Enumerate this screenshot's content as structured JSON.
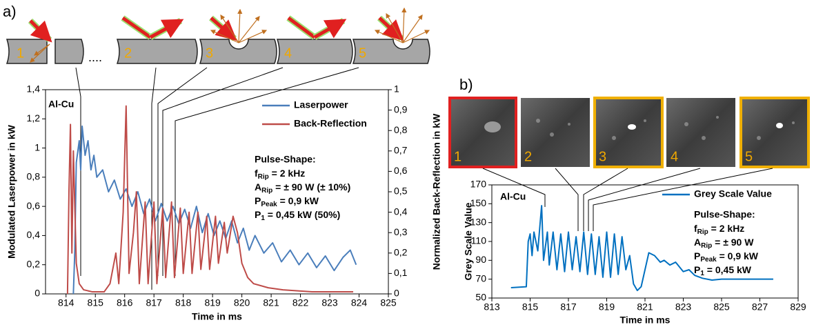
{
  "figure": {
    "panel_labels": [
      "a)",
      "b)"
    ],
    "schematic_labels": [
      "1",
      "2",
      "3",
      "4",
      "5"
    ],
    "ellipsis": "....",
    "image_labels": [
      "1",
      "2",
      "3",
      "4",
      "5"
    ]
  },
  "chart_data": [
    {
      "type": "line",
      "label": "Al-Cu",
      "xlabel": "Time in ms",
      "ylabel": "Modulated Laserpower in kW",
      "y2label": "Normalized Back-Reflection in kW",
      "xlim": [
        813.3,
        825
      ],
      "xticks": [
        814,
        815,
        816,
        817,
        818,
        819,
        820,
        821,
        822,
        823,
        824,
        825
      ],
      "ylim": [
        0,
        1.4
      ],
      "yticks": [
        0,
        {
          "value": 0.2,
          "label": "0,2"
        },
        {
          "value": 0.4,
          "label": "0,4"
        },
        {
          "value": 0.6,
          "label": "0,6"
        },
        {
          "value": 0.8,
          "label": "0,8"
        },
        1,
        {
          "value": 1.2,
          "label": "1,2"
        },
        {
          "value": 1.4,
          "label": "1,4"
        }
      ],
      "y2lim": [
        0,
        1
      ],
      "y2ticks": [
        0,
        {
          "value": 0.1,
          "label": "0,1"
        },
        {
          "value": 0.2,
          "label": "0,2"
        },
        {
          "value": 0.3,
          "label": "0,3"
        },
        {
          "value": 0.4,
          "label": "0,4"
        },
        {
          "value": 0.5,
          "label": "0,5"
        },
        {
          "value": 0.6,
          "label": "0,6"
        },
        {
          "value": 0.7,
          "label": "0,7"
        },
        {
          "value": 0.8,
          "label": "0,8"
        },
        {
          "value": 0.9,
          "label": "0,9"
        },
        1
      ],
      "pulse_shape": {
        "title": "Pulse-Shape:",
        "lines": [
          {
            "symbol": "f",
            "sub": "Rip",
            "text": " = 2 kHz"
          },
          {
            "symbol": "A",
            "sub": "Rip",
            "text": " = ± 90 W (± 10%)"
          },
          {
            "symbol": "P",
            "sub": "Peak",
            "text": " = 0,9 kW"
          },
          {
            "symbol": "P",
            "sub": "1",
            "text": " = 0,45 kW (50%)"
          }
        ]
      },
      "series": [
        {
          "name": "Laserpower",
          "color": "#4a7ebb",
          "x": [
            814.25,
            814.3,
            814.35,
            814.45,
            814.5,
            814.55,
            814.65,
            814.75,
            814.85,
            814.95,
            815.05,
            815.25,
            815.45,
            815.65,
            815.85,
            816.05,
            816.25,
            816.45,
            816.65,
            816.85,
            817.05,
            817.25,
            817.45,
            817.65,
            817.85,
            818.05,
            818.25,
            818.45,
            818.65,
            818.85,
            819.05,
            819.25,
            819.45,
            819.65,
            819.85,
            820.05,
            820.25,
            820.45,
            820.75,
            821.05,
            821.35,
            821.65,
            821.95,
            822.25,
            822.55,
            822.85,
            823.15,
            823.45,
            823.7,
            823.9
          ],
          "values": [
            0,
            0.3,
            0.9,
            1.05,
            0.85,
            1.15,
            0.95,
            1.05,
            0.85,
            0.95,
            0.8,
            0.85,
            0.7,
            0.78,
            0.65,
            0.72,
            0.6,
            0.7,
            0.55,
            0.65,
            0.5,
            0.62,
            0.5,
            0.6,
            0.48,
            0.58,
            0.45,
            0.6,
            0.42,
            0.55,
            0.4,
            0.5,
            0.38,
            0.5,
            0.35,
            0.45,
            0.3,
            0.4,
            0.28,
            0.35,
            0.22,
            0.3,
            0.2,
            0.28,
            0.18,
            0.26,
            0.16,
            0.25,
            0.3,
            0.2
          ]
        },
        {
          "name": "Back-Reflection",
          "color": "#be4b48",
          "axis": "y2",
          "x": [
            814.05,
            814.1,
            814.15,
            814.2,
            814.25,
            814.35,
            814.45,
            814.6,
            814.9,
            815.3,
            815.5,
            815.7,
            815.8,
            815.95,
            816.05,
            816.15,
            816.3,
            816.4,
            816.5,
            816.7,
            816.8,
            817.0,
            817.1,
            817.3,
            817.4,
            817.6,
            817.7,
            817.9,
            818.0,
            818.2,
            818.3,
            818.5,
            818.6,
            818.8,
            818.9,
            819.1,
            819.2,
            819.4,
            819.5,
            819.7,
            819.85,
            820.0,
            820.2,
            820.4,
            820.9,
            821.4,
            822.4,
            823.8
          ],
          "values": [
            0,
            0.5,
            0.83,
            0.2,
            0.7,
            0.15,
            0.05,
            0.02,
            0.01,
            0.01,
            0.05,
            0.2,
            0.05,
            0.4,
            0.92,
            0.1,
            0.3,
            0.5,
            0.05,
            0.45,
            0.05,
            0.45,
            0.05,
            0.42,
            0.08,
            0.45,
            0.08,
            0.42,
            0.1,
            0.4,
            0.1,
            0.4,
            0.12,
            0.38,
            0.12,
            0.38,
            0.15,
            0.35,
            0.2,
            0.38,
            0.3,
            0.15,
            0.08,
            0.05,
            0.03,
            0.02,
            0.01,
            0.01
          ]
        }
      ]
    },
    {
      "type": "line",
      "label": "Al-Cu",
      "xlabel": "Time in ms",
      "ylabel": "Grey Scale Value",
      "xlim": [
        813,
        829
      ],
      "xticks": [
        813,
        815,
        817,
        819,
        821,
        823,
        825,
        827,
        829
      ],
      "ylim": [
        50,
        170
      ],
      "yticks": [
        50,
        70,
        90,
        110,
        130,
        150,
        170
      ],
      "pulse_shape": {
        "title": "Pulse-Shape:",
        "lines": [
          {
            "symbol": "f",
            "sub": "Rip",
            "text": " = 2 kHz"
          },
          {
            "symbol": "A",
            "sub": "Rip",
            "text": " = ± 90 W"
          },
          {
            "symbol": "P",
            "sub": "Peak",
            "text": " = 0,9 kW"
          },
          {
            "symbol": "P",
            "sub": "1",
            "text": " = 0,45 kW"
          }
        ]
      },
      "series": [
        {
          "name": "Grey Scale Value",
          "color": "#0070c0",
          "x": [
            814,
            814.8,
            814.9,
            815.0,
            815.1,
            815.2,
            815.4,
            815.6,
            815.7,
            815.9,
            816.0,
            816.2,
            816.4,
            816.6,
            816.8,
            817.0,
            817.2,
            817.4,
            817.6,
            817.8,
            818.0,
            818.2,
            818.4,
            818.6,
            818.8,
            819.0,
            819.2,
            819.4,
            819.6,
            819.8,
            820.0,
            820.2,
            820.4,
            820.6,
            820.8,
            821.0,
            821.2,
            821.5,
            821.8,
            822.0,
            822.3,
            822.6,
            823.0,
            823.3,
            823.6,
            824.0,
            824.5,
            825.0,
            826.0,
            827.7
          ],
          "values": [
            61,
            62,
            110,
            118,
            95,
            120,
            100,
            148,
            90,
            120,
            85,
            120,
            80,
            118,
            78,
            120,
            80,
            115,
            78,
            120,
            75,
            118,
            75,
            115,
            72,
            120,
            72,
            118,
            75,
            115,
            80,
            95,
            65,
            58,
            62,
            80,
            98,
            95,
            88,
            90,
            85,
            88,
            78,
            80,
            74,
            71,
            69,
            70,
            70,
            70
          ]
        }
      ]
    }
  ]
}
